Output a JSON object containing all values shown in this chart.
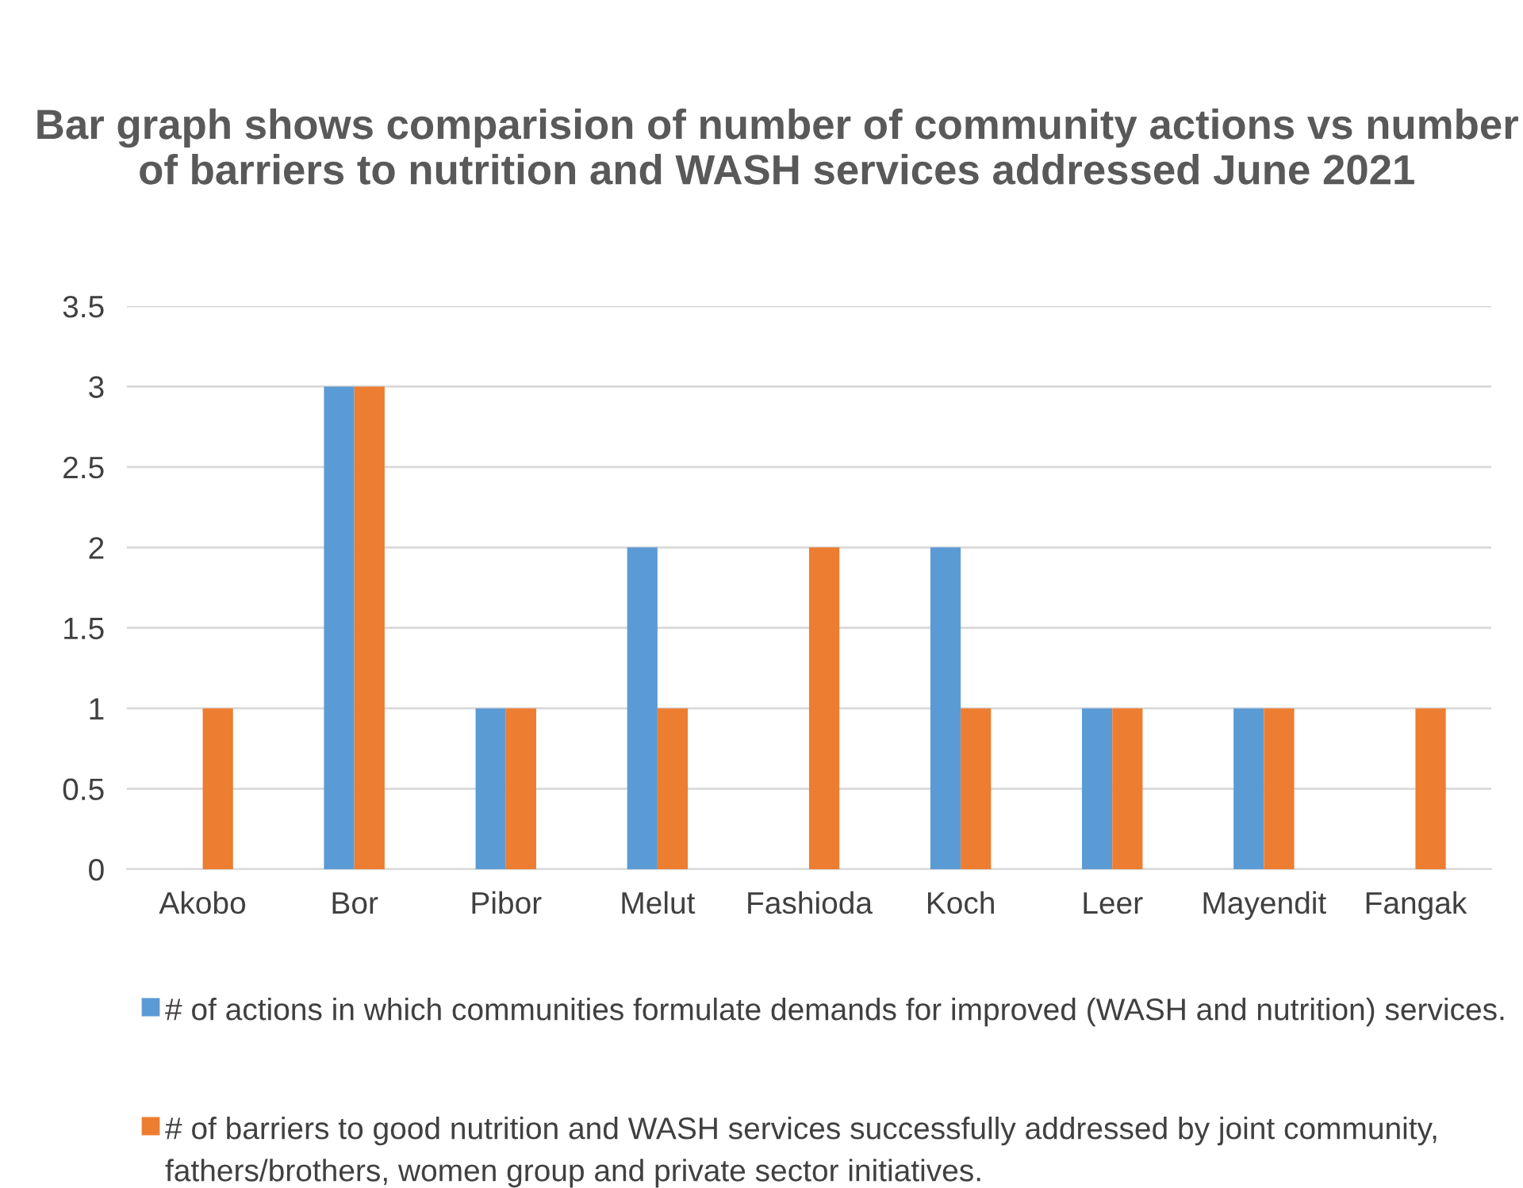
{
  "chart_data": {
    "type": "bar",
    "title": "Bar graph shows comparision of number of community actions vs number of barriers to nutrition and WASH services addressed June 2021",
    "categories": [
      "Akobo",
      "Bor",
      "Pibor",
      "Melut",
      "Fashioda",
      "Koch",
      "Leer",
      "Mayendit",
      "Fangak"
    ],
    "series": [
      {
        "name": "# of actions in which communities formulate demands for improved (WASH and nutrition) services.",
        "color": "#5b9bd5",
        "values": [
          0,
          3,
          1,
          2,
          0,
          2,
          1,
          1,
          0
        ]
      },
      {
        "name": "# of barriers to good nutrition and WASH services successfully addressed by joint community, fathers/brothers, women group and private sector initiatives.",
        "color": "#ed7d31",
        "values": [
          1,
          3,
          1,
          1,
          2,
          1,
          1,
          1,
          1
        ]
      }
    ],
    "ylim": [
      0,
      3.5
    ],
    "yticks": [
      0,
      0.5,
      1,
      1.5,
      2,
      2.5,
      3,
      3.5
    ],
    "grid": "y",
    "legend": "bottom"
  }
}
